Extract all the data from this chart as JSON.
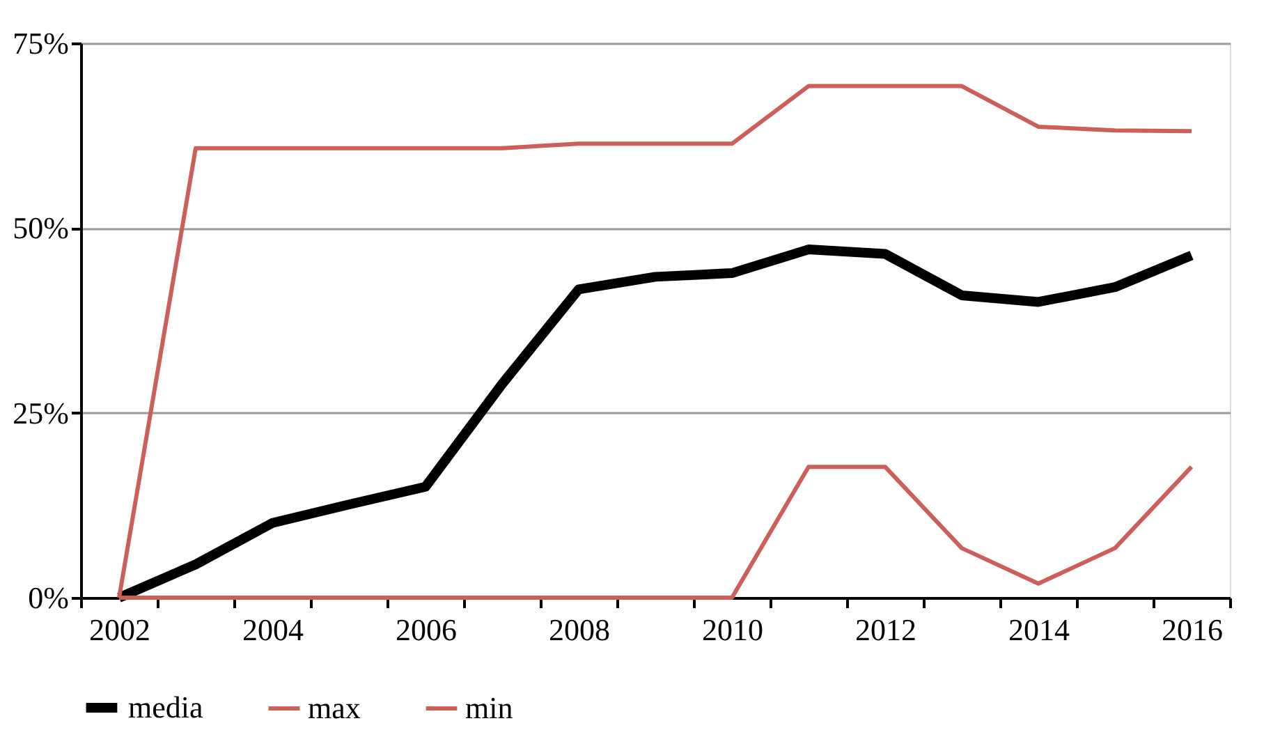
{
  "chart_data": {
    "type": "line",
    "categories": [
      "2002",
      null,
      "2004",
      null,
      "2006",
      null,
      "2008",
      null,
      "2010",
      null,
      "2012",
      null,
      "2014",
      null,
      "2016"
    ],
    "series": [
      {
        "name": "media",
        "color": "#000000",
        "values": [
          0,
          4.5,
          10.1,
          12.6,
          15,
          28.9,
          41.7,
          43.4,
          43.9,
          47.1,
          46.5,
          40.9,
          40,
          42,
          46.3
        ]
      },
      {
        "name": "max",
        "color": "#cd5f5a",
        "values": [
          0,
          60.8,
          60.8,
          60.8,
          60.8,
          60.8,
          61.4,
          61.4,
          61.4,
          69.2,
          69.2,
          69.2,
          63.7,
          63.2,
          63.1
        ]
      },
      {
        "name": "min",
        "color": "#cd5f5a",
        "values": [
          0,
          0,
          0,
          0,
          0,
          0,
          0,
          0,
          0,
          17.7,
          17.7,
          6.7,
          1.9,
          6.7,
          17.7
        ]
      }
    ],
    "ylim": [
      0,
      75
    ],
    "yticks": [
      {
        "value": 0,
        "label": "0%"
      },
      {
        "value": 25,
        "label": "25%"
      },
      {
        "value": 50,
        "label": "50%"
      },
      {
        "value": 75,
        "label": "75%"
      }
    ],
    "grid": "y",
    "legend": "bottom",
    "marker": "none",
    "line_style": "solid"
  }
}
